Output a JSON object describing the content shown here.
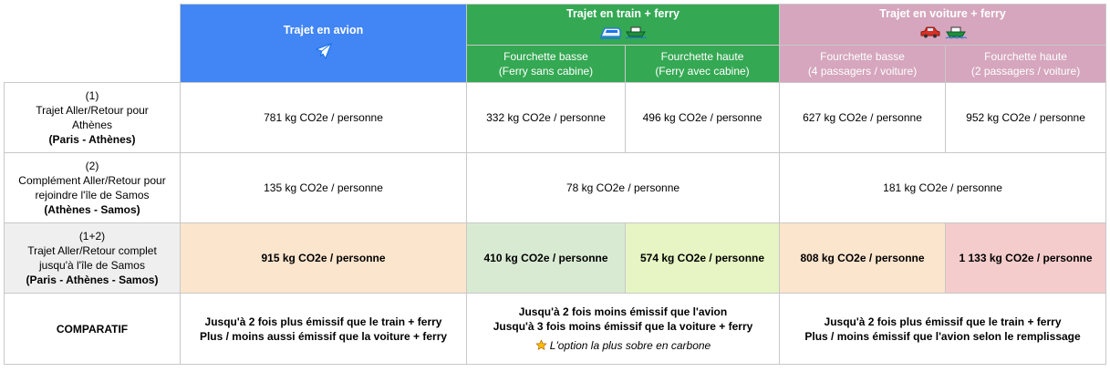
{
  "header": {
    "plane": {
      "title": "Trajet en avion",
      "icon": "airplane-icon"
    },
    "train": {
      "title": "Trajet en train + ferry",
      "icons": [
        "train-icon",
        "ferry-icon"
      ]
    },
    "car": {
      "title": "Trajet en voiture + ferry",
      "icons": [
        "car-icon",
        "ferry-icon"
      ]
    }
  },
  "subheader": {
    "train_low": {
      "line1": "Fourchette basse",
      "line2": "(Ferry sans cabine)"
    },
    "train_high": {
      "line1": "Fourchette haute",
      "line2": "(Ferry avec cabine)"
    },
    "car_low": {
      "line1": "Fourchette basse",
      "line2": "(4 passagers / voiture)"
    },
    "car_high": {
      "line1": "Fourchette haute",
      "line2": "(2 passagers / voiture)"
    }
  },
  "rows": {
    "r1": {
      "num": "(1)",
      "label1": "Trajet Aller/Retour pour",
      "label2": "Athènes",
      "route": "(Paris - Athènes)",
      "plane": "781 kg CO2e / personne",
      "train_low": "332 kg CO2e / personne",
      "train_high": "496 kg CO2e / personne",
      "car_low": "627 kg CO2e / personne",
      "car_high": "952 kg CO2e / personne"
    },
    "r2": {
      "num": "(2)",
      "label1": "Complément Aller/Retour pour",
      "label2": "rejoindre l'île de Samos",
      "route": "(Athènes - Samos)",
      "plane": "135 kg CO2e / personne",
      "train": "78 kg CO2e / personne",
      "car": "181 kg CO2e / personne"
    },
    "r3": {
      "num": "(1+2)",
      "label1": "Trajet Aller/Retour complet",
      "label2": "jusqu'à l'île de Samos",
      "route": "(Paris - Athènes - Samos)",
      "plane": "915 kg CO2e / personne",
      "train_low": "410 kg CO2e / personne",
      "train_high": "574 kg CO2e / personne",
      "car_low": "808 kg CO2e / personne",
      "car_high": "1 133 kg CO2e / personne"
    },
    "r4": {
      "label": "COMPARATIF",
      "plane1": "Jusqu'à 2 fois plus émissif que le train + ferry",
      "plane2": "Plus / moins aussi émissif que la voiture + ferry",
      "train1": "Jusqu'à 2 fois moins émissif que l'avion",
      "train2": "Jusqu'à 3 fois moins émissif que la voiture + ferry",
      "train_note": "L'option la plus sobre en carbone",
      "train_note_icon": "star-icon",
      "car1": "Jusqu'à 2 fois plus émissif que le train + ferry",
      "car2": "Plus / moins émissif que l'avion selon le remplissage"
    }
  },
  "colors": {
    "plane_header": "#4285f4",
    "train_header": "#34a853",
    "car_header": "#d5a6bd",
    "orange_cell": "#fce5cd",
    "green_cell": "#d9ead3",
    "lime_cell": "#e6f5c3",
    "red_cell": "#f4cccc",
    "grey_rowhead": "#efefef"
  }
}
